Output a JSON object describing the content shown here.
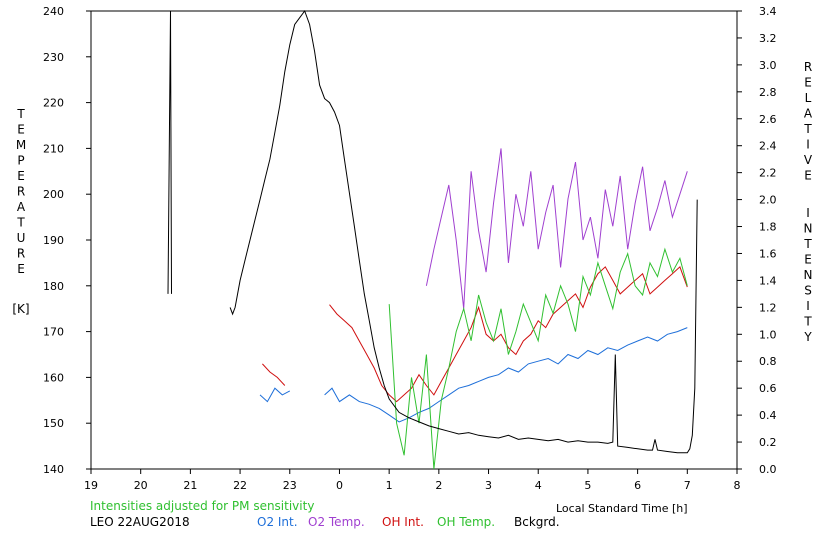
{
  "chart_data": {
    "type": "line",
    "ylabel_left_letters": [
      "T",
      "E",
      "M",
      "P",
      "E",
      "R",
      "A",
      "T",
      "U",
      "R",
      "E"
    ],
    "ylabel_left_unit": "[K]",
    "ylabel_right_letters_1": [
      "R",
      "E",
      "L",
      "A",
      "T",
      "I",
      "V",
      "E"
    ],
    "ylabel_right_letters_2": [
      "I",
      "N",
      "T",
      "E",
      "N",
      "S",
      "I",
      "T",
      "Y"
    ],
    "xlabel": "Local Standard Time [h]",
    "note": "Intensities adjusted for PM sensitivity",
    "site_date": "LEO 22AUG2018",
    "x_ticks": [
      "19",
      "20",
      "21",
      "22",
      "23",
      "0",
      "1",
      "2",
      "3",
      "4",
      "5",
      "6",
      "7",
      "8"
    ],
    "x_tick_values": [
      19,
      20,
      21,
      22,
      23,
      24,
      25,
      26,
      27,
      28,
      29,
      30,
      31,
      32
    ],
    "xlim": [
      19,
      32
    ],
    "y_left_ticks": [
      140,
      150,
      160,
      170,
      180,
      190,
      200,
      210,
      220,
      230,
      240
    ],
    "y_left_lim": [
      140,
      240
    ],
    "y_right_ticks": [
      "0.0",
      "0.2",
      "0.4",
      "0.6",
      "0.8",
      "1.0",
      "1.2",
      "1.4",
      "1.6",
      "1.8",
      "2.0",
      "2.2",
      "2.4",
      "2.6",
      "2.8",
      "3.0",
      "3.2",
      "3.4"
    ],
    "y_right_lim": [
      0,
      3.4
    ],
    "series": [
      {
        "name": "O2 Int.",
        "color": "#1e6fd9",
        "axis": "right",
        "x": [
          22.4,
          22.55,
          22.7,
          22.85,
          23.0,
          23.7,
          23.85,
          24.0,
          24.2,
          24.4,
          24.6,
          24.8,
          25.0,
          25.2,
          25.4,
          25.6,
          25.8,
          26.0,
          26.2,
          26.4,
          26.6,
          26.8,
          27.0,
          27.2,
          27.4,
          27.6,
          27.8,
          28.0,
          28.2,
          28.4,
          28.6,
          28.8,
          29.0,
          29.2,
          29.4,
          29.6,
          29.8,
          30.0,
          30.2,
          30.4,
          30.6,
          30.8,
          31.0
        ],
        "y": [
          0.55,
          0.5,
          0.6,
          0.55,
          0.58,
          0.55,
          0.6,
          0.5,
          0.55,
          0.5,
          0.48,
          0.45,
          0.4,
          0.35,
          0.38,
          0.42,
          0.45,
          0.5,
          0.55,
          0.6,
          0.62,
          0.65,
          0.68,
          0.7,
          0.75,
          0.72,
          0.78,
          0.8,
          0.82,
          0.78,
          0.85,
          0.82,
          0.88,
          0.85,
          0.9,
          0.88,
          0.92,
          0.95,
          0.98,
          0.95,
          1.0,
          1.02,
          1.05
        ]
      },
      {
        "name": "O2 Temp.",
        "color": "#a040d0",
        "axis": "left",
        "x": [
          25.75,
          25.9,
          26.05,
          26.2,
          26.35,
          26.5,
          26.65,
          26.8,
          26.95,
          27.1,
          27.25,
          27.4,
          27.55,
          27.7,
          27.85,
          28.0,
          28.15,
          28.3,
          28.45,
          28.6,
          28.75,
          28.9,
          29.05,
          29.2,
          29.35,
          29.5,
          29.65,
          29.8,
          29.95,
          30.1,
          30.25,
          30.4,
          30.55,
          30.7,
          30.85,
          31.0
        ],
        "y": [
          180,
          188,
          195,
          202,
          190,
          175,
          205,
          192,
          183,
          198,
          210,
          185,
          200,
          193,
          205,
          188,
          196,
          202,
          184,
          199,
          207,
          190,
          195,
          186,
          201,
          193,
          204,
          188,
          198,
          206,
          192,
          197,
          203,
          195,
          200,
          205
        ]
      },
      {
        "name": "OH Int.",
        "color": "#d01010",
        "axis": "right",
        "x": [
          22.45,
          22.6,
          22.75,
          22.9,
          23.8,
          23.95,
          24.1,
          24.25,
          24.4,
          24.55,
          24.7,
          24.85,
          25.0,
          25.15,
          25.3,
          25.45,
          25.6,
          25.75,
          25.9,
          26.05,
          26.2,
          26.35,
          26.5,
          26.65,
          26.8,
          26.95,
          27.1,
          27.25,
          27.4,
          27.55,
          27.7,
          27.85,
          28.0,
          28.15,
          28.3,
          28.45,
          28.6,
          28.75,
          28.9,
          29.05,
          29.2,
          29.35,
          29.5,
          29.65,
          29.8,
          29.95,
          30.1,
          30.25,
          30.4,
          30.55,
          30.7,
          30.85,
          31.0
        ],
        "y": [
          0.78,
          0.72,
          0.68,
          0.62,
          1.22,
          1.15,
          1.1,
          1.05,
          0.95,
          0.85,
          0.75,
          0.62,
          0.55,
          0.5,
          0.55,
          0.6,
          0.7,
          0.62,
          0.55,
          0.65,
          0.75,
          0.85,
          0.95,
          1.05,
          1.2,
          1.0,
          0.95,
          1.0,
          0.9,
          0.85,
          0.95,
          1.0,
          1.1,
          1.05,
          1.15,
          1.2,
          1.25,
          1.3,
          1.2,
          1.35,
          1.45,
          1.5,
          1.4,
          1.3,
          1.35,
          1.4,
          1.45,
          1.3,
          1.35,
          1.4,
          1.45,
          1.5,
          1.35
        ]
      },
      {
        "name": "OH Temp.",
        "color": "#30c030",
        "axis": "left",
        "x": [
          25.0,
          25.15,
          25.3,
          25.45,
          25.6,
          25.75,
          25.9,
          26.05,
          26.2,
          26.35,
          26.5,
          26.65,
          26.8,
          26.95,
          27.1,
          27.25,
          27.4,
          27.55,
          27.7,
          27.85,
          28.0,
          28.15,
          28.3,
          28.45,
          28.6,
          28.75,
          28.9,
          29.05,
          29.2,
          29.35,
          29.5,
          29.65,
          29.8,
          29.95,
          30.1,
          30.25,
          30.4,
          30.55,
          30.7,
          30.85,
          31.0
        ],
        "y": [
          176,
          150,
          143,
          160,
          150,
          165,
          140,
          155,
          162,
          170,
          175,
          168,
          178,
          172,
          168,
          175,
          165,
          170,
          176,
          172,
          168,
          178,
          174,
          180,
          176,
          170,
          182,
          178,
          185,
          180,
          175,
          183,
          187,
          180,
          178,
          185,
          182,
          188,
          183,
          186,
          180
        ]
      },
      {
        "name": "Bckgrd.",
        "color": "#000000",
        "axis": "right",
        "x": [
          20.55,
          20.6,
          20.62,
          21.8,
          21.85,
          21.9,
          21.95,
          22.0,
          22.1,
          22.2,
          22.3,
          22.4,
          22.5,
          22.6,
          22.7,
          22.8,
          22.9,
          23.0,
          23.1,
          23.2,
          23.3,
          23.4,
          23.5,
          23.6,
          23.7,
          23.8,
          23.9,
          24.0,
          24.1,
          24.2,
          24.3,
          24.4,
          24.5,
          24.6,
          24.7,
          24.8,
          24.9,
          25.0,
          25.2,
          25.4,
          25.6,
          25.8,
          26.0,
          26.2,
          26.4,
          26.6,
          26.8,
          27.0,
          27.2,
          27.4,
          27.6,
          27.8,
          28.0,
          28.2,
          28.4,
          28.6,
          28.8,
          29.0,
          29.2,
          29.4,
          29.5,
          29.55,
          29.6,
          29.8,
          30.0,
          30.2,
          30.3,
          30.35,
          30.4,
          30.6,
          30.8,
          31.0,
          31.05,
          31.1,
          31.15,
          31.2
        ],
        "y": [
          1.3,
          3.4,
          1.3,
          1.2,
          1.15,
          1.2,
          1.3,
          1.4,
          1.55,
          1.7,
          1.85,
          2.0,
          2.15,
          2.3,
          2.5,
          2.7,
          2.95,
          3.15,
          3.3,
          3.35,
          3.4,
          3.3,
          3.1,
          2.85,
          2.75,
          2.72,
          2.65,
          2.55,
          2.3,
          2.05,
          1.8,
          1.55,
          1.3,
          1.1,
          0.9,
          0.75,
          0.62,
          0.52,
          0.42,
          0.38,
          0.35,
          0.32,
          0.3,
          0.28,
          0.26,
          0.27,
          0.25,
          0.24,
          0.23,
          0.25,
          0.22,
          0.23,
          0.22,
          0.21,
          0.22,
          0.2,
          0.21,
          0.2,
          0.2,
          0.19,
          0.2,
          0.85,
          0.17,
          0.16,
          0.15,
          0.14,
          0.14,
          0.22,
          0.14,
          0.13,
          0.12,
          0.12,
          0.15,
          0.25,
          0.6,
          2.0
        ]
      }
    ]
  }
}
